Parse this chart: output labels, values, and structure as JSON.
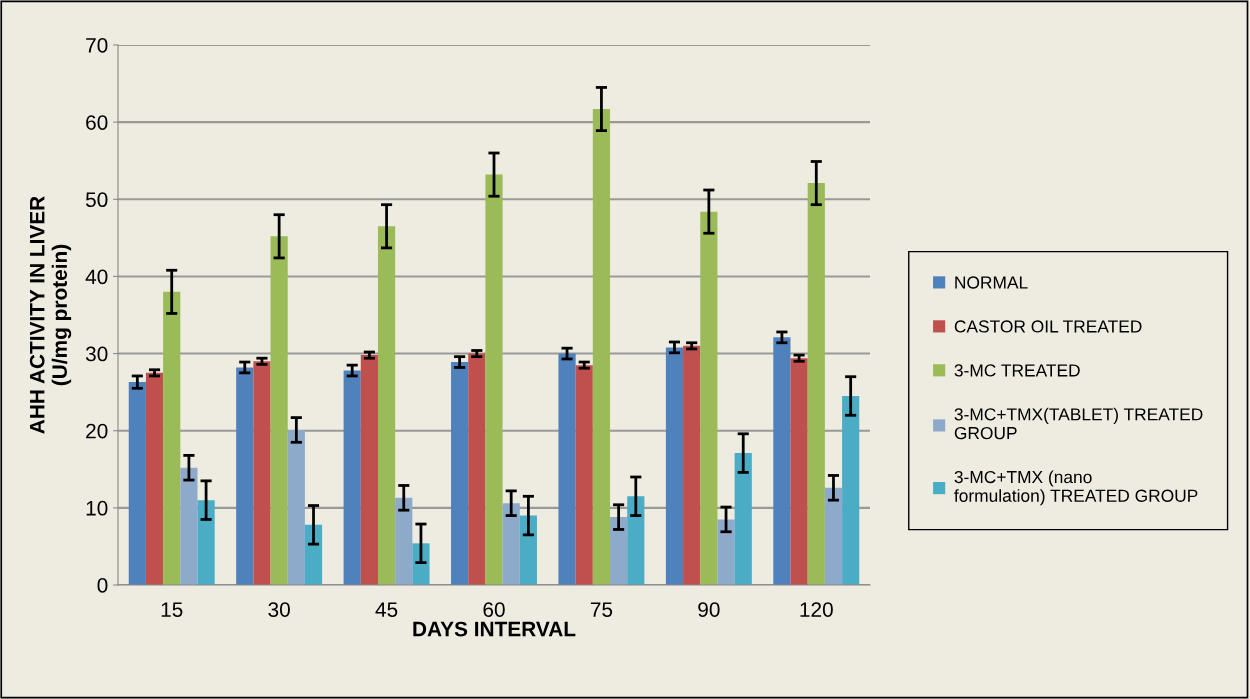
{
  "chart_data": {
    "type": "bar",
    "xlabel": "DAYS INTERVAL",
    "ylabel": "AHH ACTIVITY IN LIVER\n(U/mg protein)",
    "categories": [
      "15",
      "30",
      "45",
      "60",
      "75",
      "90",
      "120"
    ],
    "series": [
      {
        "name": "NORMAL",
        "color": "#4f81bd",
        "values": [
          26.3,
          28.2,
          27.8,
          28.9,
          30.0,
          30.8,
          32.1
        ],
        "errors": [
          0.8,
          0.7,
          0.7,
          0.7,
          0.7,
          0.7,
          0.7
        ]
      },
      {
        "name": "CASTOR OIL TREATED",
        "color": "#c0504d",
        "values": [
          27.5,
          29.0,
          29.8,
          30.0,
          28.5,
          31.0,
          29.4
        ],
        "errors": [
          0.4,
          0.4,
          0.4,
          0.4,
          0.4,
          0.4,
          0.4
        ]
      },
      {
        "name": "3-MC TREATED",
        "color": "#9bbb59",
        "values": [
          38.0,
          45.2,
          46.5,
          53.2,
          61.7,
          48.4,
          52.1
        ],
        "errors": [
          2.8,
          2.8,
          2.8,
          2.8,
          2.8,
          2.8,
          2.8
        ]
      },
      {
        "name": "3-MC+TMX(TABLET) TREATED\nGROUP",
        "color": "#8eaacb",
        "values": [
          15.2,
          20.1,
          11.3,
          10.6,
          8.8,
          8.5,
          12.6
        ],
        "errors": [
          1.6,
          1.6,
          1.6,
          1.6,
          1.6,
          1.6,
          1.6
        ]
      },
      {
        "name": "3-MC+TMX (nano\nformulation) TREATED GROUP",
        "color": "#4bacc6",
        "values": [
          11.0,
          7.8,
          5.4,
          9.0,
          11.5,
          17.1,
          24.5
        ],
        "errors": [
          2.5,
          2.5,
          2.5,
          2.5,
          2.5,
          2.5,
          2.5
        ]
      }
    ],
    "ylim": [
      0,
      70
    ],
    "yticks": [
      0,
      10,
      20,
      30,
      40,
      50,
      60,
      70
    ],
    "grid": "y",
    "legend": "right"
  }
}
